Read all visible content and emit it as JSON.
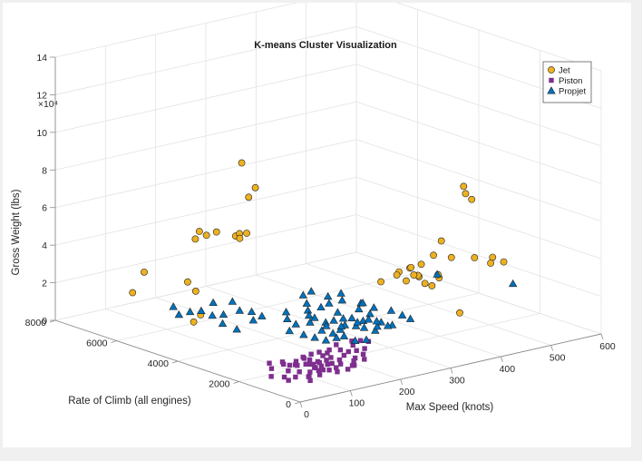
{
  "chart_data": {
    "type": "scatter",
    "title": "K-means Cluster Visualization",
    "xlabel": "Max Speed (knots)",
    "ylabel": "Rate of Climb (all engines)",
    "zlabel": "Gross Weight (lbs)",
    "z_exponent_label": "×10⁴",
    "xlim": [
      0,
      600
    ],
    "ylim": [
      0,
      8000
    ],
    "zlim": [
      0,
      140000
    ],
    "x_ticks": [
      0,
      100,
      200,
      300,
      400,
      500,
      600
    ],
    "y_ticks": [
      0,
      2000,
      4000,
      6000,
      8000
    ],
    "z_ticks": [
      0,
      2,
      4,
      6,
      8,
      10,
      12,
      14
    ],
    "grid": true,
    "legend_position": "top-right",
    "series": [
      {
        "name": "Jet",
        "marker": "circle",
        "color": "#edb120",
        "points": [
          [
            280,
            6500,
            75000
          ],
          [
            295,
            6300,
            62000
          ],
          [
            300,
            6600,
            55000
          ],
          [
            220,
            6900,
            40000
          ],
          [
            215,
            6950,
            36000
          ],
          [
            228,
            6800,
            38000
          ],
          [
            245,
            6750,
            39000
          ],
          [
            290,
            6500,
            37000
          ],
          [
            280,
            6700,
            35000
          ],
          [
            300,
            6900,
            34000
          ],
          [
            270,
            6400,
            36000
          ],
          [
            110,
            6900,
            25000
          ],
          [
            90,
            6950,
            15000
          ],
          [
            160,
            6300,
            20000
          ],
          [
            170,
            6200,
            15000
          ],
          [
            125,
            5300,
            10000
          ],
          [
            105,
            5200,
            8000
          ],
          [
            460,
            2200,
            75000
          ],
          [
            470,
            2300,
            70000
          ],
          [
            470,
            2100,
            68000
          ],
          [
            440,
            2600,
            45000
          ],
          [
            400,
            2200,
            42000
          ],
          [
            460,
            2600,
            35000
          ],
          [
            500,
            2500,
            33000
          ],
          [
            530,
            2400,
            32000
          ],
          [
            540,
            2200,
            30000
          ],
          [
            520,
            2300,
            30000
          ],
          [
            380,
            3000,
            30000
          ],
          [
            370,
            2600,
            28000
          ],
          [
            350,
            3100,
            26000
          ],
          [
            400,
            3400,
            25000
          ],
          [
            420,
            3000,
            25000
          ],
          [
            430,
            3200,
            24000
          ],
          [
            460,
            3000,
            22000
          ],
          [
            470,
            3200,
            22000
          ],
          [
            440,
            3500,
            22000
          ],
          [
            420,
            3300,
            28000
          ],
          [
            410,
            3100,
            30000
          ],
          [
            450,
            3300,
            18000
          ],
          [
            470,
            3400,
            15000
          ],
          [
            400,
            2600,
            35000
          ],
          [
            440,
            2000,
            10000
          ]
        ]
      },
      {
        "name": "Piston",
        "marker": "square",
        "color": "#7e2f8e",
        "points": [
          [
            100,
            1800,
            4000
          ],
          [
            120,
            1500,
            3000
          ],
          [
            140,
            1400,
            4000
          ],
          [
            90,
            1500,
            2500
          ],
          [
            110,
            1200,
            3500
          ],
          [
            130,
            1700,
            3000
          ],
          [
            150,
            1600,
            4500
          ],
          [
            160,
            1300,
            3500
          ],
          [
            170,
            1500,
            4000
          ],
          [
            80,
            1700,
            2500
          ],
          [
            95,
            1900,
            3500
          ],
          [
            105,
            1400,
            2000
          ],
          [
            115,
            1600,
            4500
          ],
          [
            125,
            1300,
            2500
          ],
          [
            135,
            1900,
            4000
          ],
          [
            145,
            1200,
            3000
          ],
          [
            155,
            1800,
            5500
          ],
          [
            165,
            1700,
            4500
          ],
          [
            175,
            1100,
            3000
          ],
          [
            185,
            1600,
            5000
          ],
          [
            195,
            1400,
            4000
          ],
          [
            70,
            1300,
            2000
          ],
          [
            85,
            1100,
            2500
          ],
          [
            100,
            1000,
            3000
          ],
          [
            110,
            1900,
            2500
          ],
          [
            120,
            2100,
            3000
          ],
          [
            130,
            2000,
            4500
          ],
          [
            140,
            2200,
            3500
          ],
          [
            150,
            2100,
            5000
          ],
          [
            160,
            2000,
            6000
          ],
          [
            170,
            1900,
            5500
          ],
          [
            180,
            2000,
            6000
          ],
          [
            190,
            1800,
            6500
          ],
          [
            200,
            1700,
            5500
          ],
          [
            210,
            1600,
            6000
          ],
          [
            220,
            1500,
            7000
          ],
          [
            60,
            1500,
            1500
          ],
          [
            75,
            900,
            2000
          ],
          [
            90,
            1200,
            1500
          ],
          [
            125,
            1100,
            3500
          ],
          [
            135,
            1000,
            2500
          ],
          [
            150,
            900,
            3500
          ],
          [
            165,
            1000,
            4000
          ],
          [
            180,
            1200,
            4500
          ],
          [
            195,
            1100,
            5000
          ],
          [
            205,
            1300,
            6000
          ],
          [
            215,
            1800,
            7500
          ],
          [
            225,
            2000,
            8000
          ],
          [
            105,
            2300,
            2500
          ],
          [
            95,
            2100,
            3000
          ],
          [
            85,
            2400,
            2500
          ],
          [
            140,
            1600,
            2000
          ],
          [
            155,
            1500,
            3000
          ],
          [
            115,
            1700,
            4000
          ],
          [
            230,
            1800,
            9000
          ],
          [
            240,
            1700,
            8500
          ],
          [
            200,
            2100,
            7000
          ],
          [
            130,
            1500,
            5000
          ],
          [
            145,
            1800,
            3000
          ],
          [
            110,
            1300,
            4500
          ],
          [
            50,
            1200,
            2000
          ],
          [
            40,
            1600,
            2500
          ],
          [
            65,
            2000,
            3000
          ]
        ]
      },
      {
        "name": "Propjet",
        "marker": "triangle",
        "color": "#0072bd",
        "points": [
          [
            250,
            3000,
            12000
          ],
          [
            260,
            2800,
            10000
          ],
          [
            270,
            3200,
            14000
          ],
          [
            280,
            2900,
            12000
          ],
          [
            240,
            3100,
            11000
          ],
          [
            230,
            3300,
            13000
          ],
          [
            290,
            2700,
            11000
          ],
          [
            300,
            3000,
            15000
          ],
          [
            310,
            2800,
            13000
          ],
          [
            255,
            3500,
            16000
          ],
          [
            265,
            3400,
            18000
          ],
          [
            275,
            3600,
            20000
          ],
          [
            245,
            3800,
            17000
          ],
          [
            235,
            3600,
            15000
          ],
          [
            285,
            3300,
            19000
          ],
          [
            295,
            3500,
            21000
          ],
          [
            225,
            3400,
            14000
          ],
          [
            215,
            3200,
            12000
          ],
          [
            205,
            3500,
            10000
          ],
          [
            320,
            2600,
            9000
          ],
          [
            330,
            2400,
            8000
          ],
          [
            310,
            3100,
            17000
          ],
          [
            260,
            3900,
            22000
          ],
          [
            250,
            4000,
            20000
          ],
          [
            240,
            2500,
            7000
          ],
          [
            230,
            2700,
            8000
          ],
          [
            220,
            2900,
            9000
          ],
          [
            210,
            2600,
            6000
          ],
          [
            200,
            2800,
            7000
          ],
          [
            290,
            2300,
            8000
          ],
          [
            300,
            2400,
            9000
          ],
          [
            340,
            2600,
            14000
          ],
          [
            350,
            2400,
            12000
          ],
          [
            360,
            2300,
            10000
          ],
          [
            270,
            2600,
            10000
          ],
          [
            280,
            2500,
            9000
          ],
          [
            190,
            3000,
            8000
          ],
          [
            180,
            3300,
            9000
          ],
          [
            320,
            3200,
            16000
          ],
          [
            330,
            3000,
            14000
          ],
          [
            250,
            2300,
            5000
          ],
          [
            260,
            2100,
            6000
          ],
          [
            235,
            3000,
            10000
          ],
          [
            245,
            2700,
            9000
          ],
          [
            265,
            3000,
            8000
          ],
          [
            275,
            3100,
            11000
          ],
          [
            225,
            2500,
            7000
          ],
          [
            285,
            2800,
            10000
          ],
          [
            295,
            2600,
            12000
          ],
          [
            305,
            2500,
            11000
          ],
          [
            315,
            2300,
            9000
          ],
          [
            200,
            3700,
            12000
          ],
          [
            210,
            3900,
            14000
          ],
          [
            180,
            4200,
            12000
          ],
          [
            160,
            4600,
            14000
          ],
          [
            140,
            4800,
            12000
          ],
          [
            130,
            5000,
            11000
          ],
          [
            120,
            5200,
            13000
          ],
          [
            150,
            5300,
            15000
          ],
          [
            110,
            5400,
            12000
          ],
          [
            170,
            5000,
            16000
          ],
          [
            100,
            5600,
            10000
          ],
          [
            95,
            5700,
            14000
          ],
          [
            120,
            4500,
            10000
          ],
          [
            130,
            4200,
            8000
          ],
          [
            540,
            1900,
            20000
          ],
          [
            450,
            2900,
            25000
          ],
          [
            175,
            4400,
            9000
          ],
          [
            190,
            4700,
            11000
          ]
        ]
      }
    ]
  }
}
